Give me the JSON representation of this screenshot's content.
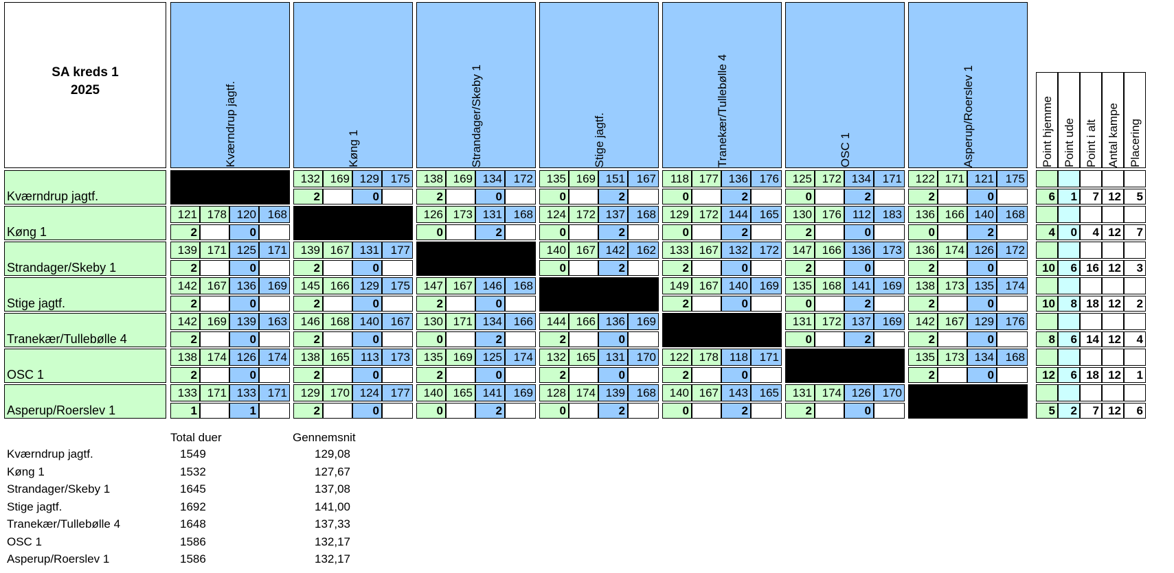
{
  "title": {
    "line1": "SA kreds 1",
    "line2": "2025"
  },
  "teams": [
    "Kværndrup jagtf.",
    "Køng 1",
    "Strandager/Skeby 1",
    "Stige jagtf.",
    "Tranekær/Tullebølle 4",
    "OSC 1",
    "Asperup/Roerslev 1"
  ],
  "summary_headers": [
    "Point hjemme",
    "Point ude",
    "Point i alt",
    "Antal kampe",
    "Placering"
  ],
  "matches": [
    [
      null,
      {
        "s": [
          132,
          169,
          129,
          175
        ],
        "p": [
          "2",
          "0"
        ]
      },
      {
        "s": [
          138,
          169,
          134,
          172
        ],
        "p": [
          "2",
          "0"
        ]
      },
      {
        "s": [
          135,
          169,
          151,
          167
        ],
        "p": [
          "0",
          "2"
        ]
      },
      {
        "s": [
          118,
          177,
          136,
          176
        ],
        "p": [
          "0",
          "2"
        ]
      },
      {
        "s": [
          125,
          172,
          134,
          171
        ],
        "p": [
          "0",
          "2"
        ]
      },
      {
        "s": [
          122,
          171,
          121,
          175
        ],
        "p": [
          "2",
          "0"
        ]
      }
    ],
    [
      {
        "s": [
          121,
          178,
          120,
          168
        ],
        "p": [
          "2",
          "0"
        ]
      },
      null,
      {
        "s": [
          126,
          173,
          131,
          168
        ],
        "p": [
          "0",
          "2"
        ]
      },
      {
        "s": [
          124,
          172,
          137,
          168
        ],
        "p": [
          "0",
          "2"
        ]
      },
      {
        "s": [
          129,
          172,
          144,
          165
        ],
        "p": [
          "0",
          "2"
        ]
      },
      {
        "s": [
          130,
          176,
          112,
          183
        ],
        "p": [
          "2",
          "0"
        ]
      },
      {
        "s": [
          136,
          166,
          140,
          168
        ],
        "p": [
          "0",
          "2"
        ]
      }
    ],
    [
      {
        "s": [
          139,
          171,
          125,
          171
        ],
        "p": [
          "2",
          "0"
        ]
      },
      {
        "s": [
          139,
          167,
          131,
          177
        ],
        "p": [
          "2",
          "0"
        ]
      },
      null,
      {
        "s": [
          140,
          167,
          142,
          162
        ],
        "p": [
          "0",
          "2"
        ]
      },
      {
        "s": [
          133,
          167,
          132,
          172
        ],
        "p": [
          "2",
          "0"
        ]
      },
      {
        "s": [
          147,
          166,
          136,
          173
        ],
        "p": [
          "2",
          "0"
        ]
      },
      {
        "s": [
          136,
          174,
          126,
          172
        ],
        "p": [
          "2",
          "0"
        ]
      }
    ],
    [
      {
        "s": [
          142,
          167,
          136,
          169
        ],
        "p": [
          "2",
          "0"
        ]
      },
      {
        "s": [
          145,
          166,
          129,
          175
        ],
        "p": [
          "2",
          "0"
        ]
      },
      {
        "s": [
          147,
          167,
          146,
          168
        ],
        "p": [
          "2",
          "0"
        ]
      },
      null,
      {
        "s": [
          149,
          167,
          140,
          169
        ],
        "p": [
          "2",
          "0"
        ]
      },
      {
        "s": [
          135,
          168,
          141,
          169
        ],
        "p": [
          "0",
          "2"
        ]
      },
      {
        "s": [
          138,
          173,
          135,
          174
        ],
        "p": [
          "2",
          "0"
        ]
      }
    ],
    [
      {
        "s": [
          142,
          169,
          139,
          163
        ],
        "p": [
          "2",
          "0"
        ]
      },
      {
        "s": [
          146,
          168,
          140,
          167
        ],
        "p": [
          "2",
          "0"
        ]
      },
      {
        "s": [
          130,
          171,
          134,
          166
        ],
        "p": [
          "0",
          "2"
        ]
      },
      {
        "s": [
          144,
          166,
          136,
          169
        ],
        "p": [
          "2",
          "0"
        ]
      },
      null,
      {
        "s": [
          131,
          172,
          137,
          169
        ],
        "p": [
          "0",
          "2"
        ]
      },
      {
        "s": [
          142,
          167,
          129,
          176
        ],
        "p": [
          "2",
          "0"
        ]
      }
    ],
    [
      {
        "s": [
          138,
          174,
          126,
          174
        ],
        "p": [
          "2",
          "0"
        ]
      },
      {
        "s": [
          138,
          165,
          113,
          173
        ],
        "p": [
          "2",
          "0"
        ]
      },
      {
        "s": [
          135,
          169,
          125,
          174
        ],
        "p": [
          "2",
          "0"
        ]
      },
      {
        "s": [
          132,
          165,
          131,
          170
        ],
        "p": [
          "2",
          "0"
        ]
      },
      {
        "s": [
          122,
          178,
          118,
          171
        ],
        "p": [
          "2",
          "0"
        ]
      },
      null,
      {
        "s": [
          135,
          173,
          134,
          168
        ],
        "p": [
          "2",
          "0"
        ]
      }
    ],
    [
      {
        "s": [
          133,
          171,
          133,
          171
        ],
        "p": [
          "1",
          "1"
        ]
      },
      {
        "s": [
          129,
          170,
          124,
          177
        ],
        "p": [
          "2",
          "0"
        ]
      },
      {
        "s": [
          140,
          165,
          141,
          169
        ],
        "p": [
          "0",
          "2"
        ]
      },
      {
        "s": [
          128,
          174,
          139,
          168
        ],
        "p": [
          "0",
          "2"
        ]
      },
      {
        "s": [
          140,
          167,
          143,
          165
        ],
        "p": [
          "0",
          "2"
        ]
      },
      {
        "s": [
          131,
          174,
          126,
          170
        ],
        "p": [
          "2",
          "0"
        ]
      },
      null
    ]
  ],
  "summary": [
    [
      "6",
      "1",
      "7",
      "12",
      "5"
    ],
    [
      "4",
      "0",
      "4",
      "12",
      "7"
    ],
    [
      "10",
      "6",
      "16",
      "12",
      "3"
    ],
    [
      "10",
      "8",
      "18",
      "12",
      "2"
    ],
    [
      "8",
      "6",
      "14",
      "12",
      "4"
    ],
    [
      "12",
      "6",
      "18",
      "12",
      "1"
    ],
    [
      "5",
      "2",
      "7",
      "12",
      "6"
    ]
  ],
  "totals": {
    "headers": [
      "Total duer",
      "Gennemsnit"
    ],
    "rows": [
      {
        "team": "Kværndrup jagtf.",
        "total": "1549",
        "avg": "129,08"
      },
      {
        "team": "Køng 1",
        "total": "1532",
        "avg": "127,67"
      },
      {
        "team": "Strandager/Skeby 1",
        "total": "1645",
        "avg": "137,08"
      },
      {
        "team": "Stige jagtf.",
        "total": "1692",
        "avg": "141,00"
      },
      {
        "team": "Tranekær/Tullebølle 4",
        "total": "1648",
        "avg": "137,33"
      },
      {
        "team": "OSC 1",
        "total": "1586",
        "avg": "132,17"
      },
      {
        "team": "Asperup/Roerslev 1",
        "total": "1586",
        "avg": "132,17"
      }
    ]
  },
  "colors": {
    "green": "#ccffcc",
    "blue": "#99ccff",
    "light_blue": "#ccffff",
    "black": "#000000"
  }
}
